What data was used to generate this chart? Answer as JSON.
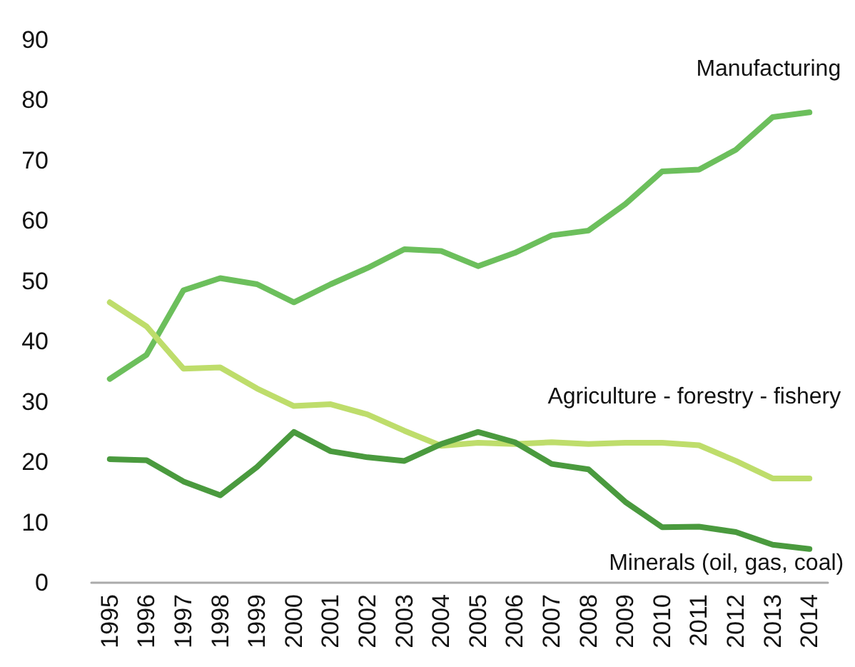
{
  "chart_data": {
    "type": "line",
    "categories": [
      "1995",
      "1996",
      "1997",
      "1998",
      "1999",
      "2000",
      "2001",
      "2002",
      "2003",
      "2004",
      "2005",
      "2006",
      "2007",
      "2008",
      "2009",
      "2010",
      "2011",
      "2012",
      "2013",
      "2014"
    ],
    "series": [
      {
        "name": "Manufacturing",
        "color": "#6cbf5c",
        "values": [
          33.8,
          37.8,
          48.5,
          50.5,
          49.5,
          46.5,
          49.5,
          52.2,
          55.3,
          55.0,
          52.5,
          54.7,
          57.6,
          58.4,
          62.8,
          68.2,
          68.5,
          71.8,
          77.2,
          78.0
        ]
      },
      {
        "name": "Agriculture - forestry - fishery",
        "color": "#bedd6b",
        "values": [
          46.5,
          42.5,
          35.5,
          35.7,
          32.2,
          29.3,
          29.6,
          27.9,
          25.2,
          22.7,
          23.2,
          23.0,
          23.3,
          23.0,
          23.2,
          23.2,
          22.8,
          20.2,
          17.3,
          17.3
        ]
      },
      {
        "name": "Minerals (oil, gas, coal)",
        "color": "#4a9a3e",
        "values": [
          20.5,
          20.3,
          16.8,
          14.5,
          19.2,
          25.0,
          21.8,
          20.8,
          20.2,
          23.0,
          25.0,
          23.3,
          19.7,
          18.8,
          13.4,
          9.2,
          9.3,
          8.4,
          6.3,
          5.6
        ]
      }
    ],
    "ylim": [
      0,
      90
    ],
    "yticks": [
      0,
      10,
      20,
      30,
      40,
      50,
      60,
      70,
      80,
      90
    ],
    "grid": false,
    "legend": false,
    "marker": "none",
    "line_style": "solid"
  }
}
